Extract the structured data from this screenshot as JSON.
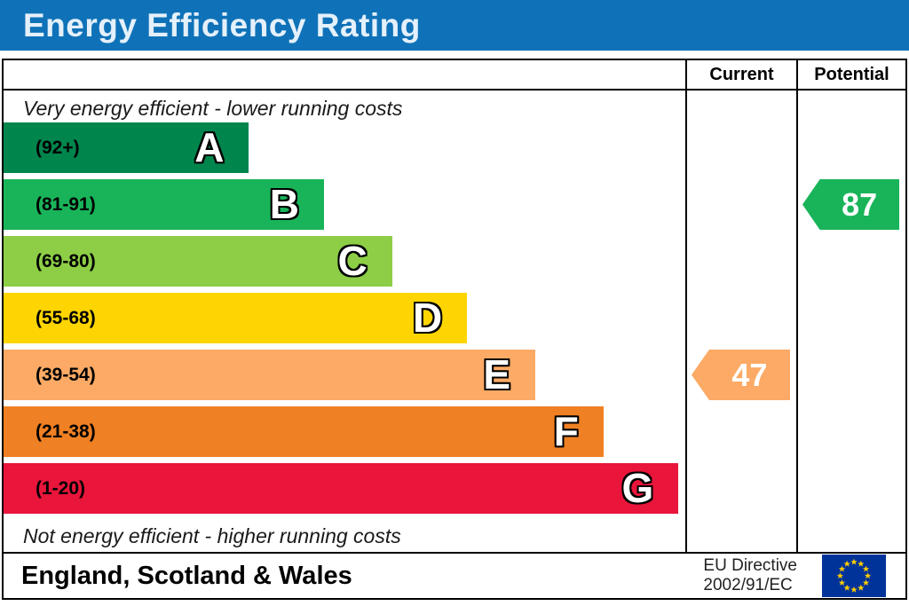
{
  "title": "Energy Efficiency Rating",
  "header": {
    "current": "Current",
    "potential": "Potential"
  },
  "notes": {
    "top": "Very energy efficient - lower running costs",
    "bottom": "Not energy efficient - higher running costs"
  },
  "bands": [
    {
      "letter": "A",
      "range": "(92+)",
      "color": "#00854d",
      "width_pct": 36
    },
    {
      "letter": "B",
      "range": "(81-91)",
      "color": "#19b459",
      "width_pct": 47
    },
    {
      "letter": "C",
      "range": "(69-80)",
      "color": "#8dce46",
      "width_pct": 57
    },
    {
      "letter": "D",
      "range": "(55-68)",
      "color": "#fed500",
      "width_pct": 68
    },
    {
      "letter": "E",
      "range": "(39-54)",
      "color": "#fcaa65",
      "width_pct": 78
    },
    {
      "letter": "F",
      "range": "(21-38)",
      "color": "#ef8023",
      "width_pct": 88
    },
    {
      "letter": "G",
      "range": "(1-20)",
      "color": "#e9153b",
      "width_pct": 99
    }
  ],
  "ratings": {
    "current": {
      "value": "47",
      "band": "E",
      "band_index": 4,
      "color": "#fcaa65"
    },
    "potential": {
      "value": "87",
      "band": "B",
      "band_index": 1,
      "color": "#19b459"
    }
  },
  "footer": {
    "region": "England, Scotland & Wales",
    "directive": [
      "EU Directive",
      "2002/91/EC"
    ]
  },
  "colors": {
    "title_bg": "#0f72b8",
    "title_text": "#e4f0fa",
    "border": "#000000",
    "eu_flag_blue": "#003399",
    "eu_flag_star": "#ffcc00"
  },
  "chart_data": {
    "type": "bar",
    "title": "Energy Efficiency Rating",
    "categories": [
      "A",
      "B",
      "C",
      "D",
      "E",
      "F",
      "G"
    ],
    "band_ranges": [
      "92+",
      "81-91",
      "69-80",
      "55-68",
      "39-54",
      "21-38",
      "1-20"
    ],
    "band_colors": [
      "#00854d",
      "#19b459",
      "#8dce46",
      "#fed500",
      "#fcaa65",
      "#ef8023",
      "#e9153b"
    ],
    "bar_relative_widths_pct": [
      36,
      47,
      57,
      68,
      78,
      88,
      99
    ],
    "current_rating": 47,
    "current_band": "E",
    "potential_rating": 87,
    "potential_band": "B",
    "top_annotation": "Very energy efficient - lower running costs",
    "bottom_annotation": "Not energy efficient - higher running costs",
    "columns": [
      "Current",
      "Potential"
    ],
    "region": "England, Scotland & Wales",
    "directive": "EU Directive 2002/91/EC",
    "legend_position": "none",
    "grid": false
  }
}
